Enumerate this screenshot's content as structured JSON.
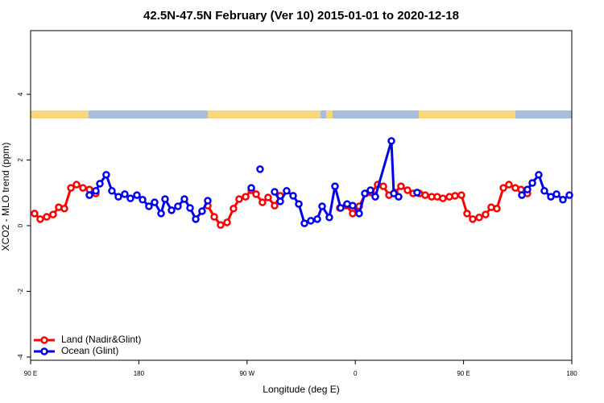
{
  "chart_data": {
    "type": "line",
    "title": "42.5N-47.5N February (Ver 10)   2015-01-01 to 2020-12-18",
    "x_label": "Longitude (deg E)",
    "y_label": "XCO2 - MLO trend (ppm)",
    "xlim": [
      90,
      540
    ],
    "ylim": [
      -4.1,
      5.94
    ],
    "xticks": [
      {
        "value": 90,
        "label": "90 E"
      },
      180,
      {
        "value": 270,
        "label": "90 W"
      },
      {
        "value": 360,
        "label": "0"
      },
      {
        "value": 450,
        "label": "90 E"
      },
      {
        "value": 540,
        "label": "180"
      }
    ],
    "yticks": [
      -4,
      -2,
      0,
      2,
      4
    ],
    "legend": "bottom-left",
    "series": [
      {
        "name": "Land (Nadir&Glint)",
        "color": "#ff0000",
        "x": [
          93.3,
          98,
          103.4,
          108.7,
          113.4,
          118.1,
          123.5,
          128.2,
          133.5,
          138.9,
          144.2,
          null,
          237.3,
          242.7,
          248,
          253.4,
          258.7,
          263.4,
          268.8,
          273.5,
          277.5,
          282.8,
          287.5,
          292.9,
          297.6,
          null,
          347.1,
          352.5,
          357.8,
          363.2,
          368.6,
          373.2,
          378.6,
          383.3,
          388,
          392.7,
          398,
          403.4,
          408.1,
          413.4,
          418.1,
          423.5,
          428.1,
          432.8,
          438.2,
          442.9,
          448.2,
          452.9,
          457.6,
          463,
          468.3,
          473,
          477.7,
          483.1,
          487.7,
          493.1,
          497.8,
          503.1
        ],
        "values": [
          0.37,
          0.2,
          0.27,
          0.34,
          0.56,
          0.52,
          1.15,
          1.25,
          1.15,
          1.1,
          0.98,
          null,
          0.61,
          0.27,
          0.02,
          0.1,
          0.52,
          0.81,
          0.88,
          1.08,
          0.96,
          0.71,
          0.86,
          0.61,
          0.91,
          null,
          0.54,
          0.61,
          0.37,
          0.59,
          0.98,
          1.01,
          1.25,
          1.2,
          0.93,
          1.01,
          1.2,
          1.08,
          0.98,
          0.98,
          0.93,
          0.88,
          0.88,
          0.83,
          0.88,
          0.91,
          0.93,
          0.37,
          0.2,
          0.25,
          0.34,
          0.56,
          0.52,
          1.15,
          1.25,
          1.15,
          1.1,
          0.98
        ]
      },
      {
        "name": "Ocean (Glint)",
        "color": "#0000ee",
        "x": [
          138.9,
          144.2,
          147.6,
          152.9,
          157.6,
          163,
          168.3,
          173,
          178.4,
          183.1,
          188.4,
          193.1,
          198.5,
          201.8,
          207.2,
          212.5,
          217.9,
          222.6,
          227.3,
          232.6,
          237.3,
          null,
          273.5,
          null,
          280.8,
          null,
          292.9,
          297.6,
          302.9,
          308.3,
          313,
          317.7,
          323,
          328.4,
          332.4,
          338.4,
          343.1,
          347.8,
          353.2,
          357.8,
          363.2,
          367.9,
          372.6,
          376.6,
          390,
          392,
          396,
          null,
          411.4,
          null,
          498.5,
          503.1,
          507.2,
          512.5,
          517.2,
          522.6,
          527.3,
          532.6,
          538
        ],
        "values": [
          0.93,
          1.06,
          1.28,
          1.55,
          1.06,
          0.88,
          0.96,
          0.83,
          0.93,
          0.79,
          0.59,
          0.71,
          0.37,
          0.81,
          0.47,
          0.59,
          0.81,
          0.54,
          0.2,
          0.44,
          0.76,
          null,
          1.15,
          null,
          1.72,
          null,
          1.03,
          0.74,
          1.06,
          0.91,
          0.66,
          0.07,
          0.15,
          0.2,
          0.59,
          0.25,
          1.2,
          0.54,
          0.66,
          0.61,
          0.37,
          0.98,
          1.08,
          0.88,
          2.58,
          0.98,
          0.88,
          null,
          1.01,
          null,
          0.93,
          1.1,
          1.3,
          1.55,
          1.06,
          0.88,
          0.96,
          0.79,
          0.93
        ]
      }
    ]
  }
}
